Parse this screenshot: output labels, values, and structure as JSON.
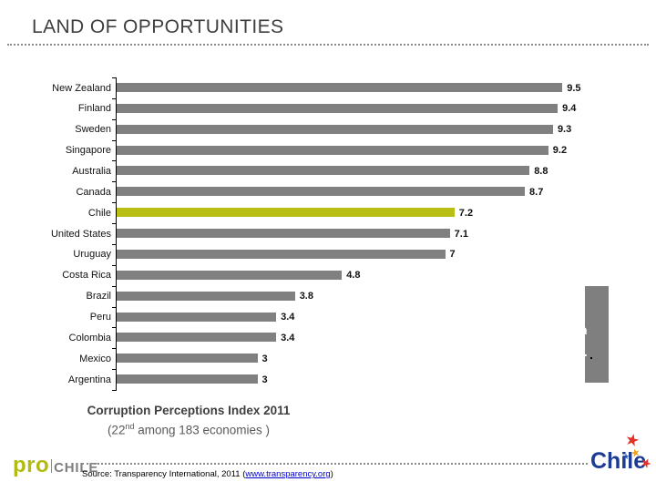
{
  "title": "LAND OF OPPORTUNITIES",
  "chart_data": {
    "type": "bar",
    "orientation": "horizontal",
    "title": "Corruption Perceptions Index 2011",
    "categories": [
      "New Zealand",
      "Finland",
      "Sweden",
      "Singapore",
      "Australia",
      "Canada",
      "Chile",
      "United States",
      "Uruguay",
      "Costa Rica",
      "Brazil",
      "Peru",
      "Colombia",
      "Mexico",
      "Argentina"
    ],
    "values": [
      9.5,
      9.4,
      9.3,
      9.2,
      8.8,
      8.7,
      7.2,
      7.1,
      7,
      4.8,
      3.8,
      3.4,
      3.4,
      3,
      3
    ],
    "xlim": [
      0,
      10
    ],
    "grid": false,
    "legend": false,
    "bar_color": "#808080",
    "highlight_category": "Chile",
    "highlight_color": "#b8be14",
    "value_labels_shown": true
  },
  "caption": {
    "line1": "Corruption Perceptions Index 2011",
    "line2_pre": "(22",
    "line2_sup": "nd",
    "line2_post": " among 183 economies )"
  },
  "side_box": {
    "fragments": [
      "n",
      "y."
    ]
  },
  "footer": {
    "prochile": {
      "pro": "pro",
      "chile": "CHILE"
    },
    "source_prefix": "Source:  Transparency International, 2011 (",
    "source_link": "www.transparency.org",
    "source_suffix": ")",
    "chile_logo_text": "Chile"
  },
  "icons": {
    "star": "★"
  },
  "colors": {
    "accent_green": "#b8be14",
    "bar_gray": "#808080",
    "title_gray": "#3f3f3f",
    "link_blue": "#0000cc",
    "chile_blue": "#1c3c94",
    "star_red": "#e03228",
    "star_orange": "#f0a01e",
    "star_blue": "#2a52be"
  }
}
